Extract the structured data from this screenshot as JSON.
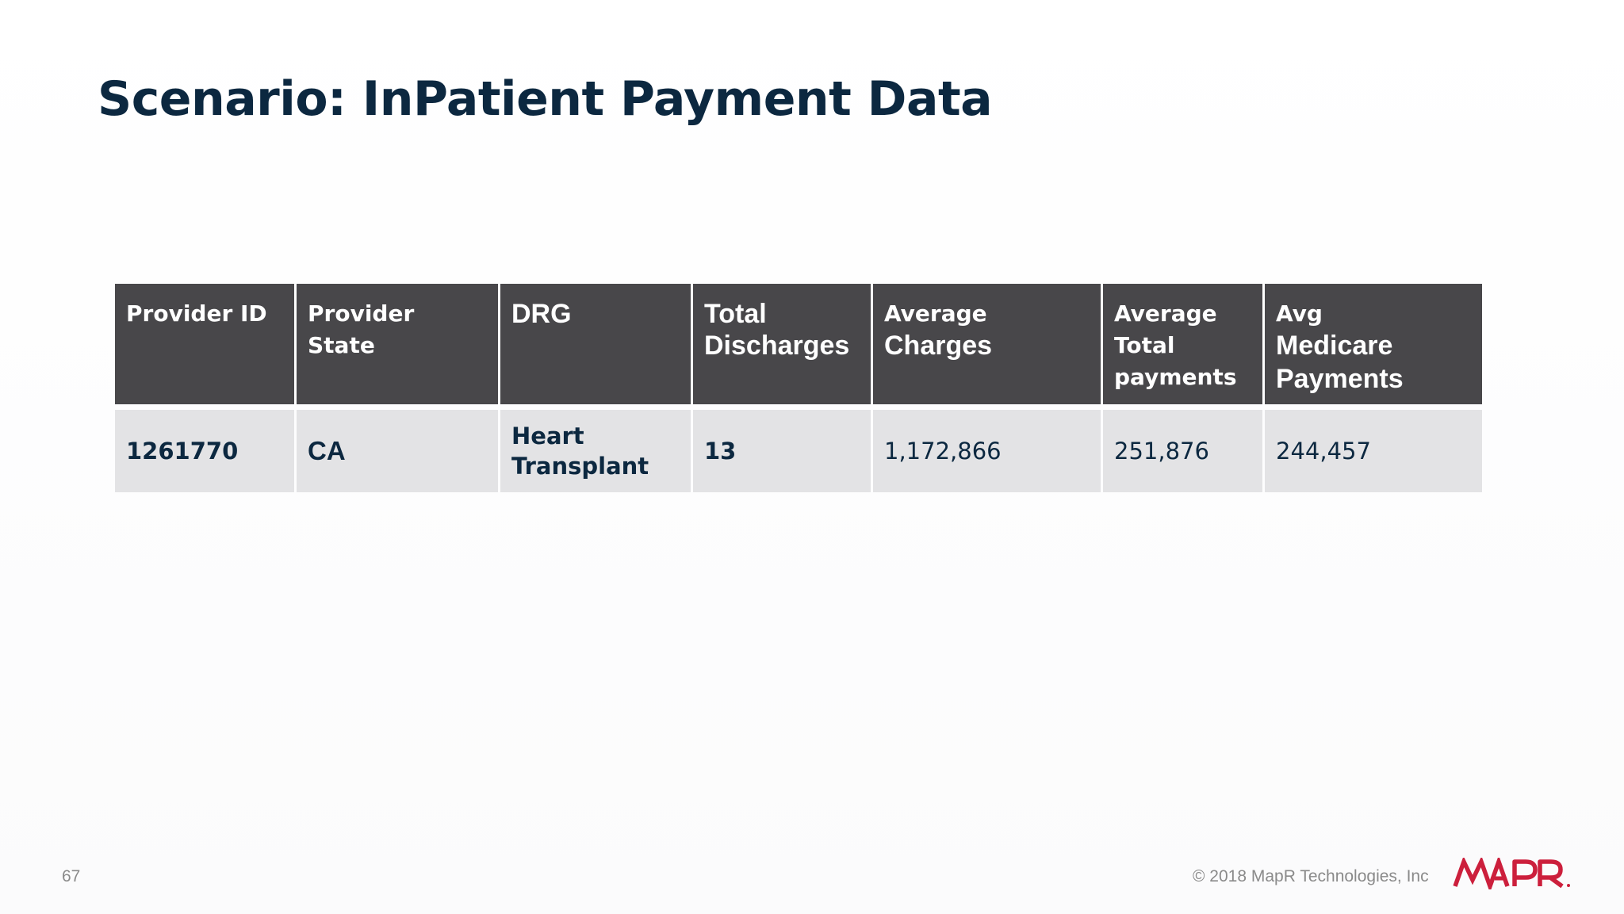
{
  "slide": {
    "title": "Scenario: InPatient Payment Data",
    "page_number": "67",
    "copyright": "© 2018 MapR Technologies, Inc",
    "logo_text": "MAPR",
    "accent_color": "#cc1f3c",
    "title_color": "#0c2840",
    "header_bg": "#48474a",
    "row_bg": "#e3e3e5"
  },
  "table": {
    "headers": [
      [
        "Provider ID"
      ],
      [
        "Provider",
        "State"
      ],
      [
        "DRG"
      ],
      [
        "Total",
        "Discharges"
      ],
      [
        "Average",
        "Charges"
      ],
      [
        "Average",
        "Total",
        "payments"
      ],
      [
        "Avg",
        "Medicare",
        "Payments"
      ]
    ],
    "row": {
      "provider_id": "1261770",
      "provider_state": "CA",
      "drg": [
        "Heart",
        "Transplant"
      ],
      "total_discharges": "13",
      "average_charges": "1,172,866",
      "average_total_payments": "251,876",
      "avg_medicare_payments": "244,457"
    }
  }
}
